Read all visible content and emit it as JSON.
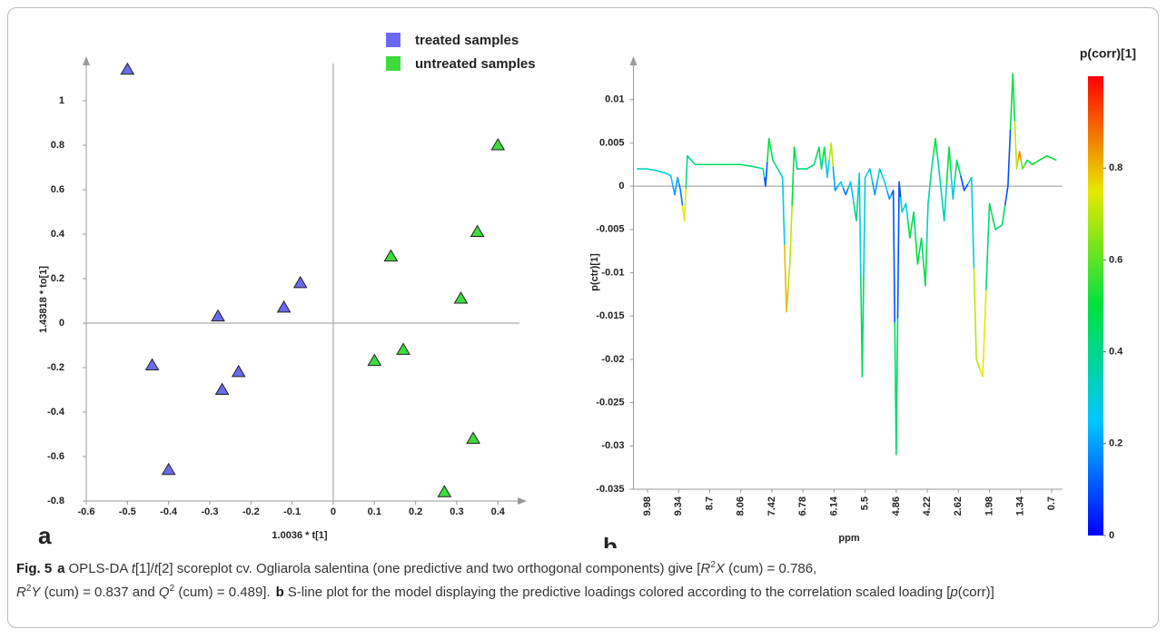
{
  "chart_data": [
    {
      "type": "scatter",
      "panel_label": "a",
      "x_label": "1.0036 * t[1]",
      "y_label": "1.43818 * to[1]",
      "xlim": [
        -0.6,
        0.47
      ],
      "xticks": [
        -0.6,
        -0.5,
        -0.4,
        -0.3,
        -0.2,
        -0.1,
        0,
        0.1,
        0.2,
        0.3,
        0.4
      ],
      "ylim": [
        -0.8,
        1.2
      ],
      "yticks": [
        -0.8,
        -0.6,
        -0.4,
        -0.2,
        0,
        0.2,
        0.4,
        0.6,
        0.8,
        1
      ],
      "legend": "top",
      "series": [
        {
          "name": "treated samples",
          "color": "#6a6af0",
          "x": [
            -0.5,
            -0.44,
            -0.28,
            -0.08,
            -0.12,
            -0.27,
            -0.23,
            -0.4
          ],
          "values": [
            1.14,
            -0.19,
            0.03,
            0.18,
            0.07,
            -0.3,
            -0.22,
            -0.66
          ]
        },
        {
          "name": "untreated samples",
          "color": "#3ddc3d",
          "x": [
            0.4,
            0.14,
            0.35,
            0.31,
            0.17,
            0.1,
            0.34,
            0.27
          ],
          "values": [
            0.8,
            0.3,
            0.41,
            0.11,
            -0.12,
            -0.17,
            -0.52,
            -0.76
          ]
        }
      ]
    },
    {
      "type": "line",
      "panel_label": "b",
      "x_label": "ppm",
      "y_label": "p(ctr)[1]",
      "xlim": [
        10.27,
        0.48
      ],
      "xticks": [
        9.98,
        9.34,
        8.7,
        8.06,
        7.42,
        6.78,
        6.14,
        5.5,
        4.86,
        4.22,
        2.62,
        1.98,
        1.34,
        0.7
      ],
      "ylim": [
        -0.035,
        0.015
      ],
      "yticks": [
        -0.035,
        -0.03,
        -0.025,
        -0.02,
        -0.015,
        -0.01,
        -0.005,
        0,
        0.005,
        0.01
      ],
      "colorbar": {
        "title": "p(corr)[1]",
        "lim": [
          0,
          1
        ],
        "ticks": [
          0,
          0.2,
          0.4,
          0.6,
          0.8
        ],
        "colorscale": [
          "#0000ff",
          "#00c8ff",
          "#00e040",
          "#e8e800",
          "#ff0000"
        ]
      },
      "series": [
        {
          "x": [
            10.2,
            10.0,
            9.8,
            9.6,
            9.5,
            9.42,
            9.36,
            9.3,
            9.22,
            9.16,
            9.0,
            8.7,
            8.4,
            8.06,
            7.75,
            7.6,
            7.55,
            7.48,
            7.4,
            7.3,
            7.2,
            7.12,
            7.05,
            6.96,
            6.9,
            6.7,
            6.55,
            6.45,
            6.4,
            6.34,
            6.28,
            6.2,
            6.12,
            6.0,
            5.9,
            5.8,
            5.68,
            5.62,
            5.56,
            5.5,
            5.4,
            5.3,
            5.2,
            5.1,
            5.0,
            4.92,
            4.86,
            4.8,
            4.74,
            4.66,
            4.58,
            4.5,
            4.42,
            4.34,
            4.26,
            4.18,
            4.0,
            3.8,
            3.6,
            3.35,
            3.1,
            2.9,
            2.7,
            2.5,
            2.35,
            2.25,
            2.12,
            1.98,
            1.86,
            1.72,
            1.6,
            1.5,
            1.42,
            1.36,
            1.3,
            1.2,
            1.1,
            0.95,
            0.8,
            0.6
          ],
          "values": [
            0.002,
            0.002,
            0.0018,
            0.0015,
            0.0012,
            -0.001,
            0.001,
            -0.0005,
            -0.004,
            0.0035,
            0.0025,
            0.0025,
            0.0025,
            0.0025,
            0.0022,
            0.002,
            0,
            0.0055,
            0.003,
            0.002,
            0.001,
            -0.0145,
            -0.009,
            0.0045,
            0.002,
            0.002,
            0.0025,
            0.0045,
            0.002,
            0.0045,
            0.001,
            0.005,
            -0.0005,
            0.0005,
            -0.001,
            0.0005,
            -0.004,
            0.0015,
            -0.022,
            0.001,
            0.002,
            -0.001,
            0.002,
            0.0005,
            -0.0015,
            -0.0005,
            -0.031,
            0.0005,
            -0.003,
            -0.002,
            -0.006,
            -0.003,
            -0.009,
            -0.006,
            -0.0115,
            -0.002,
            0.002,
            0.0055,
            0.0015,
            -0.004,
            0.0045,
            -0.0015,
            0.003,
            -0.0005,
            0.001,
            -0.02,
            -0.022,
            -0.002,
            -0.005,
            -0.0045,
            0,
            0.013,
            0.002,
            0.004,
            0.002,
            0.003,
            0.0025,
            0.003,
            0.0035,
            0.003
          ],
          "color_values": [
            0.35,
            0.35,
            0.33,
            0.3,
            0.25,
            0.2,
            0.2,
            0.15,
            0.75,
            0.4,
            0.45,
            0.45,
            0.45,
            0.45,
            0.42,
            0.35,
            0.1,
            0.5,
            0.45,
            0.4,
            0.3,
            0.8,
            0.7,
            0.5,
            0.42,
            0.42,
            0.42,
            0.5,
            0.4,
            0.5,
            0.3,
            0.7,
            0.2,
            0.25,
            0.15,
            0.25,
            0.4,
            0.3,
            0.45,
            0.3,
            0.3,
            0.2,
            0.3,
            0.25,
            0.2,
            0.1,
            0.45,
            0.1,
            0.3,
            0.3,
            0.5,
            0.45,
            0.5,
            0.45,
            0.5,
            0.35,
            0.4,
            0.5,
            0.35,
            0.35,
            0.5,
            0.3,
            0.45,
            0.1,
            0.3,
            0.7,
            0.75,
            0.45,
            0.45,
            0.45,
            0.1,
            0.5,
            0.7,
            0.85,
            0.6,
            0.5,
            0.5,
            0.5,
            0.5,
            0.5
          ]
        }
      ]
    }
  ],
  "caption": {
    "parts": [
      "Fig. 5",
      "a",
      "OPLS-DA",
      "t",
      "[1]/",
      "t",
      "[2] scoreplot cv. Ogliarola salentina (one predictive and two orthogonal components) give [",
      "R",
      "2",
      "X",
      " (cum) = 0.786,",
      "R",
      "2",
      "Y",
      " (cum) = 0.837 and ",
      "Q",
      "2",
      " (cum) = 0.489].",
      "b",
      "S-line plot for the model displaying the predictive loadings colored according to the correlation scaled loading [",
      "p",
      "(corr)]"
    ]
  }
}
